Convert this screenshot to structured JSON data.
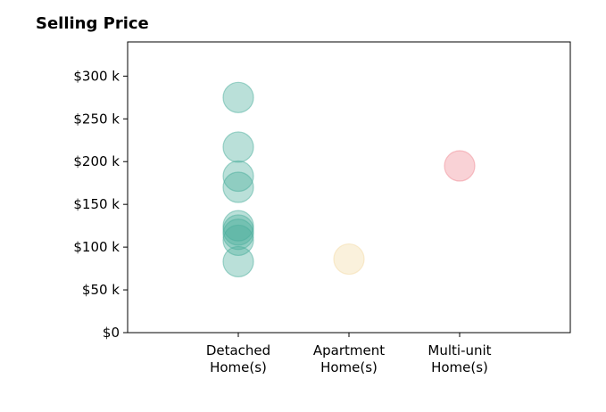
{
  "chart_data": {
    "type": "scatter",
    "title": "Selling Price",
    "xlabel": "",
    "ylabel": "",
    "categories": [
      [
        "Detached",
        "Home(s)"
      ],
      [
        "Apartment",
        "Home(s)"
      ],
      [
        "Multi-unit",
        "Home(s)"
      ]
    ],
    "ylim": [
      0,
      340000
    ],
    "yticks": [
      0,
      50000,
      100000,
      150000,
      200000,
      250000,
      300000
    ],
    "ytick_labels": [
      "$0",
      "$50 k",
      "$100 k",
      "$150 k",
      "$200 k",
      "$250 k",
      "$300 k"
    ],
    "grid": false,
    "series": [
      {
        "category_index": 0,
        "color": "#4aae9b",
        "values": [
          275000,
          217000,
          183000,
          170000,
          125000,
          120000,
          115000,
          108000,
          83000
        ]
      },
      {
        "category_index": 1,
        "color": "#f3d9a4",
        "values": [
          86000
        ]
      },
      {
        "category_index": 2,
        "color": "#ef8a93",
        "values": [
          195000
        ]
      }
    ]
  }
}
